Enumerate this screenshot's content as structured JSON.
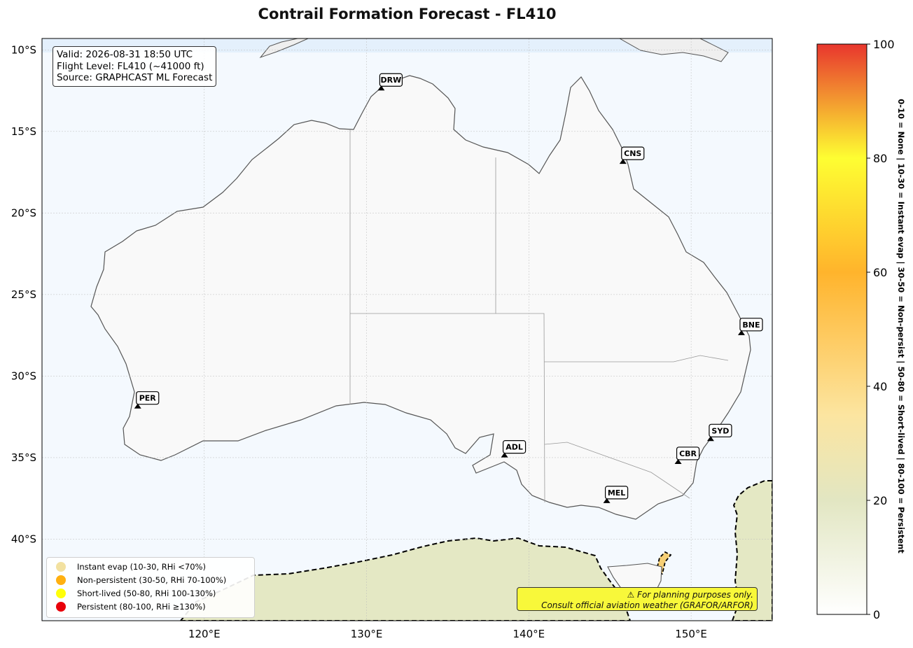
{
  "title": "Contrail Formation Forecast - FL410",
  "info_box": {
    "valid": "Valid: 2026-08-31 18:50 UTC",
    "flight_level": "Flight Level: FL410 (~41000 ft)",
    "source": "Source: GRAPHCAST ML Forecast"
  },
  "axes": {
    "lat_labels": [
      "10°S",
      "15°S",
      "20°S",
      "25°S",
      "30°S",
      "35°S",
      "40°S"
    ],
    "lon_labels": [
      "120°E",
      "130°E",
      "140°E",
      "150°E"
    ],
    "lat_values": [
      -10,
      -15,
      -20,
      -25,
      -30,
      -35,
      -40
    ],
    "lon_values": [
      120,
      130,
      140,
      150
    ],
    "lon_range": [
      110,
      155
    ],
    "lat_range": [
      -45,
      -9.3
    ]
  },
  "airports": [
    {
      "code": "DRW",
      "lon": 130.9,
      "lat": -12.4
    },
    {
      "code": "CNS",
      "lon": 145.8,
      "lat": -16.9
    },
    {
      "code": "BNE",
      "lon": 153.1,
      "lat": -27.4
    },
    {
      "code": "PER",
      "lon": 115.9,
      "lat": -31.9
    },
    {
      "code": "ADL",
      "lon": 138.5,
      "lat": -34.9
    },
    {
      "code": "SYD",
      "lon": 151.2,
      "lat": -33.9
    },
    {
      "code": "CBR",
      "lon": 149.2,
      "lat": -35.3
    },
    {
      "code": "MEL",
      "lon": 144.8,
      "lat": -37.7
    }
  ],
  "legend": [
    {
      "label": "Instant evap (10-30, RHi <70%)",
      "color": "#f2e1a0"
    },
    {
      "label": "Non-persistent (30-50, RHi 70-100%)",
      "color": "#ffb010"
    },
    {
      "label": "Short-lived (50-80, RHi 100-130%)",
      "color": "#ffff0a"
    },
    {
      "label": "Persistent (80-100, RHi ≥130%)",
      "color": "#e8000a"
    }
  ],
  "warning": {
    "line1": "⚠ For planning purposes only.",
    "line2": "Consult official aviation weather (GRAFOR/ARFOR)"
  },
  "colorbar": {
    "ticks": [
      "0",
      "20",
      "40",
      "60",
      "80",
      "100"
    ],
    "label": "0-10 = None  |  10-30 = Instant evap  |  30-50 = Non-persist  |  50-80 = Short-lived  |  80-100 = Persistent",
    "colors": [
      "#ffffff",
      "#e2e6c2",
      "#fce5a0",
      "#ffb42c",
      "#fefe32",
      "#e8362e"
    ]
  },
  "colors": {
    "ocean": "#f4f9fe",
    "land": "#f9f9f9",
    "coastline": "#555555",
    "contour": "#000000",
    "low_zone": "#e4e8c4"
  }
}
